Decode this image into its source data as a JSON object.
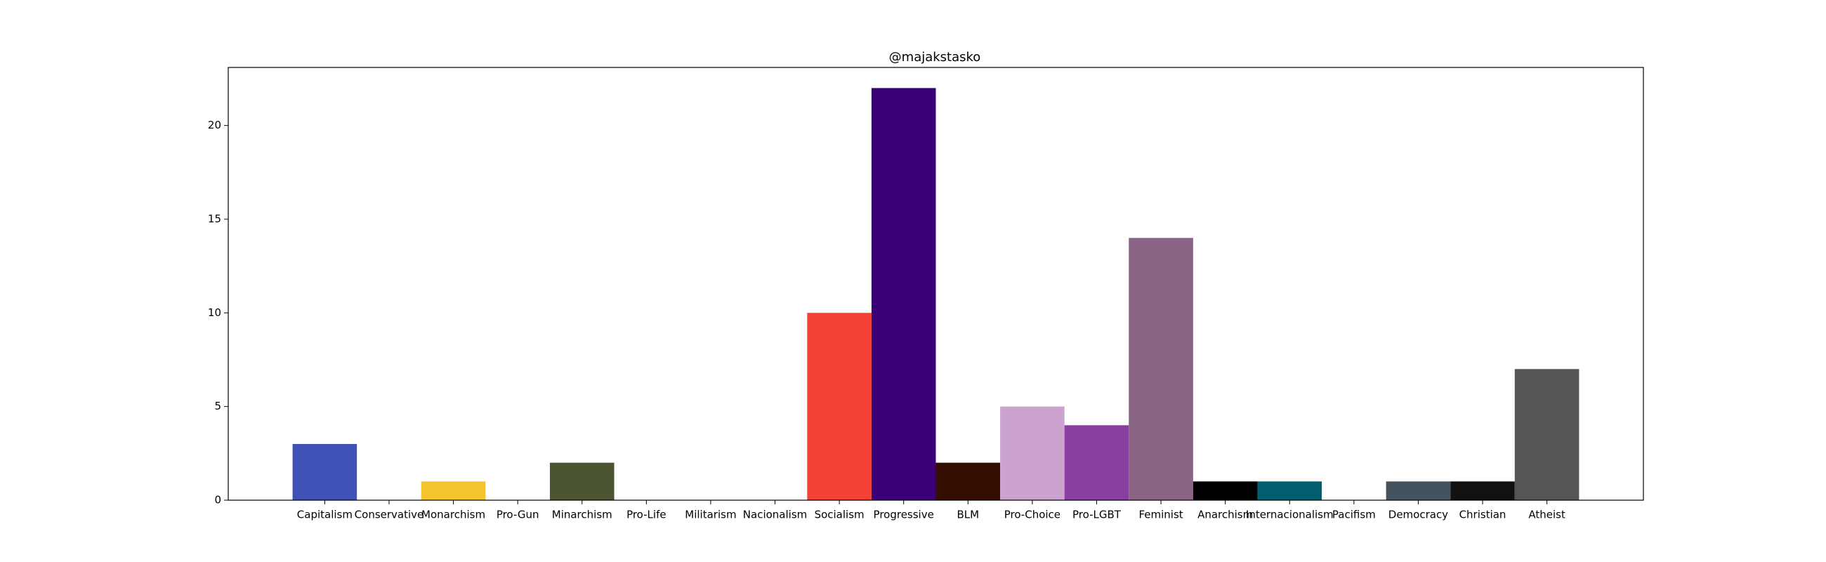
{
  "chart_data": {
    "type": "bar",
    "title": "@majakstasko",
    "xlabel": "",
    "ylabel": "",
    "ylim": [
      0,
      23.1
    ],
    "yticks": [
      0,
      5,
      10,
      15,
      20
    ],
    "grid": false,
    "categories": [
      "Capitalism",
      "Conservative",
      "Monarchism",
      "Pro-Gun",
      "Minarchism",
      "Pro-Life",
      "Militarism",
      "Nacionalism",
      "Socialism",
      "Progressive",
      "BLM",
      "Pro-Choice",
      "Pro-LGBT",
      "Feminist",
      "Anarchism",
      "Internacionalism",
      "Pacifism",
      "Democracy",
      "Christian",
      "Atheist"
    ],
    "values": [
      3,
      0,
      1,
      0,
      2,
      0,
      0,
      0,
      10,
      22,
      2,
      5,
      4,
      14,
      1,
      1,
      0,
      1,
      1,
      7
    ],
    "colors": [
      "#4052b5",
      "#ffffff",
      "#f5c42c",
      "#ffffff",
      "#4b5531",
      "#ffffff",
      "#ffffff",
      "#ffffff",
      "#f44336",
      "#3b0078",
      "#330e00",
      "#cca3cf",
      "#883fa1",
      "#8a6485",
      "#000000",
      "#005e6e",
      "#ffffff",
      "#44535e",
      "#111111",
      "#555555"
    ]
  }
}
